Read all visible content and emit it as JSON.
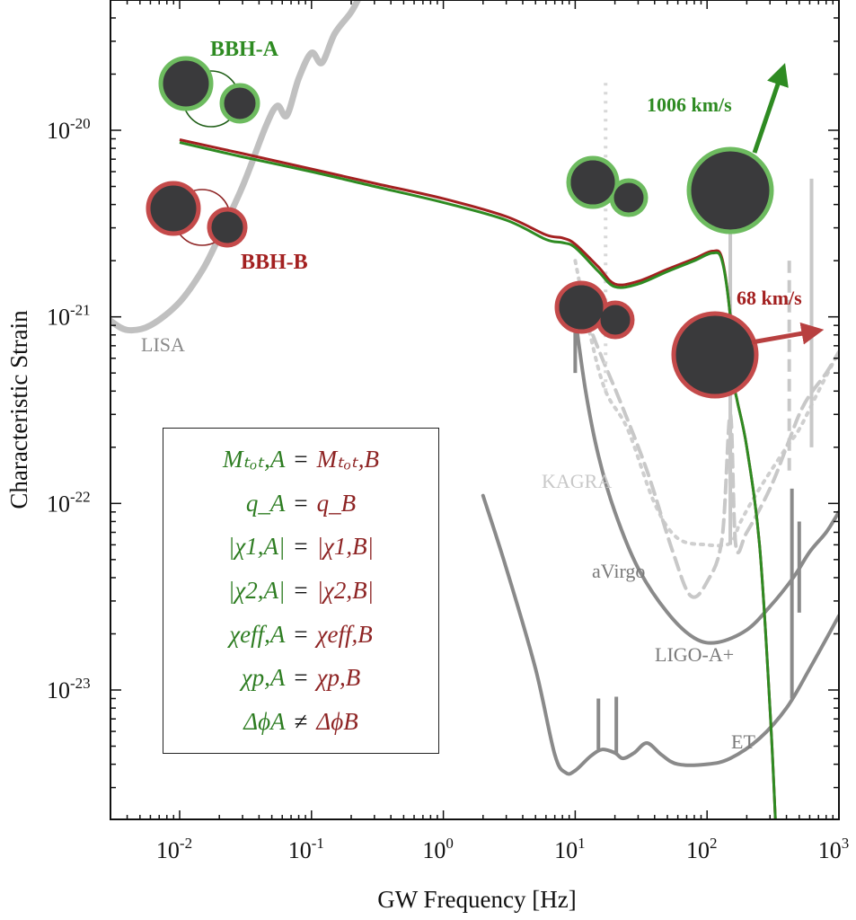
{
  "chart_data": {
    "type": "line",
    "title": "",
    "xlabel": "GW Frequency [Hz]",
    "ylabel": "Characteristic Strain",
    "xscale": "log",
    "yscale": "log",
    "xlim": [
      0.003,
      1000
    ],
    "ylim": [
      2e-24,
      5e-20
    ],
    "grid": false,
    "x_ticks": [
      {
        "value": 0.01,
        "base": "10",
        "exp": "-2"
      },
      {
        "value": 0.1,
        "base": "10",
        "exp": "-1"
      },
      {
        "value": 1,
        "base": "10",
        "exp": "0"
      },
      {
        "value": 10,
        "base": "10",
        "exp": "1"
      },
      {
        "value": 100,
        "base": "10",
        "exp": "2"
      },
      {
        "value": 1000,
        "base": "10",
        "exp": "3"
      }
    ],
    "y_ticks": [
      {
        "value": 1e-20,
        "base": "10",
        "exp": "-20"
      },
      {
        "value": 1e-21,
        "base": "10",
        "exp": "-21"
      },
      {
        "value": 1e-22,
        "base": "10",
        "exp": "-22"
      },
      {
        "value": 1e-23,
        "base": "10",
        "exp": "-23"
      }
    ],
    "series": [
      {
        "name": "BBH-A",
        "color": "#2e8b22",
        "x": [
          0.01,
          0.03,
          0.1,
          0.3,
          1,
          3,
          6,
          8,
          10,
          15,
          20,
          30,
          50,
          80,
          110,
          130,
          150,
          160,
          170,
          200,
          250,
          300,
          330
        ],
        "y": [
          8.6e-21,
          7.2e-21,
          6e-21,
          5e-21,
          4.1e-21,
          3.3e-21,
          2.6e-21,
          2.5e-21,
          2.35e-21,
          1.75e-21,
          1.45e-21,
          1.5e-21,
          1.75e-21,
          2e-21,
          2.2e-21,
          2e-21,
          1e-21,
          4.5e-22,
          3.5e-22,
          2e-22,
          6e-23,
          8e-24,
          2e-24
        ]
      },
      {
        "name": "BBH-B",
        "color": "#a32020",
        "x": [
          0.01,
          0.03,
          0.1,
          0.3,
          1,
          3,
          6,
          8,
          10,
          15,
          20,
          30,
          50,
          80,
          110,
          130,
          150,
          160,
          170,
          200,
          250,
          300,
          330
        ],
        "y": [
          8.9e-21,
          7.5e-21,
          6.2e-21,
          5.2e-21,
          4.3e-21,
          3.45e-21,
          2.75e-21,
          2.65e-21,
          2.45e-21,
          1.85e-21,
          1.5e-21,
          1.55e-21,
          1.8e-21,
          2.05e-21,
          2.25e-21,
          2.05e-21,
          1e-21,
          4.5e-22,
          3.5e-22,
          2e-22,
          6e-23,
          8e-24,
          2e-24
        ]
      }
    ],
    "detectors": [
      {
        "name": "LISA",
        "label": "LISA",
        "color": "#c0c0c0",
        "style": "solid",
        "x": [
          0.003,
          0.004,
          0.006,
          0.01,
          0.015,
          0.02,
          0.03,
          0.045,
          0.055,
          0.065,
          0.08,
          0.1,
          0.12,
          0.15,
          0.2,
          0.24
        ],
        "y": [
          9.5e-22,
          8.5e-22,
          9e-22,
          1.2e-21,
          1.8e-21,
          2.7e-21,
          5e-21,
          1.05e-20,
          1.35e-20,
          1.2e-20,
          1.9e-20,
          2.6e-20,
          2.3e-20,
          3.3e-20,
          4.3e-20,
          5.5e-20
        ]
      },
      {
        "name": "KAGRA",
        "label": "KAGRA",
        "color": "#cfcfcf",
        "style": "dotted",
        "x": [
          10,
          13,
          17,
          25,
          40,
          60,
          100,
          140,
          160,
          180,
          250,
          400,
          500,
          700,
          1000
        ],
        "y": [
          2e-21,
          8e-22,
          4e-22,
          2.5e-22,
          1e-22,
          6.5e-23,
          6e-23,
          6e-23,
          6.5e-23,
          8e-23,
          1.2e-22,
          2e-22,
          2.5e-22,
          4e-22,
          6.5e-22
        ]
      },
      {
        "name": "aVirgo",
        "label": "aVirgo",
        "color": "#c8c8c8",
        "style": "dashed",
        "x": [
          12,
          16,
          22,
          35,
          55,
          75,
          100,
          130,
          150,
          165,
          200,
          300,
          400,
          500,
          600,
          800,
          1000
        ],
        "y": [
          1e-21,
          6e-22,
          3.5e-22,
          1.5e-22,
          5.5e-23,
          3.2e-23,
          3.8e-23,
          6.5e-23,
          3e-22,
          6e-23,
          7e-23,
          1.2e-22,
          2e-22,
          3e-22,
          3.8e-22,
          5e-22,
          6.5e-22
        ]
      },
      {
        "name": "LIGO-A+",
        "label": "LIGO-A+",
        "color": "#8a8a8a",
        "style": "solid",
        "x": [
          10,
          12,
          15,
          20,
          30,
          50,
          80,
          120,
          200,
          300,
          450,
          600,
          800,
          1000
        ],
        "y": [
          1e-21,
          4e-22,
          1.8e-22,
          9e-23,
          4.5e-23,
          2.6e-23,
          1.9e-23,
          1.8e-23,
          2.1e-23,
          2.8e-23,
          4e-23,
          5.5e-23,
          7e-23,
          9e-23
        ]
      },
      {
        "name": "ET",
        "label": "ET",
        "color": "#8a8a8a",
        "style": "solid",
        "x": [
          2,
          3,
          5,
          7,
          8.5,
          10,
          13,
          16,
          20,
          23,
          28,
          35,
          45,
          60,
          100,
          150,
          250,
          400,
          600,
          1000
        ],
        "y": [
          1.1e-22,
          4.5e-23,
          1.3e-23,
          4.5e-24,
          3.6e-24,
          3.7e-24,
          4.4e-24,
          4.8e-24,
          4.6e-24,
          4.3e-24,
          4.6e-24,
          5.2e-24,
          4.5e-24,
          4e-24,
          4e-24,
          4.3e-24,
          5.5e-24,
          8e-24,
          1.3e-23,
          2.5e-23
        ]
      }
    ],
    "detector_lines": [
      {
        "detector": "ET",
        "x": 15,
        "y_from": 4.8e-24,
        "y_to": 9e-24,
        "color": "#8a8a8a"
      },
      {
        "detector": "ET",
        "x": 20.5,
        "y_from": 4.5e-24,
        "y_to": 9.2e-24,
        "color": "#8a8a8a"
      },
      {
        "detector": "ET",
        "x": 440,
        "y_from": 9e-24,
        "y_to": 1.2e-22,
        "color": "#8a8a8a"
      },
      {
        "detector": "ET",
        "x": 500,
        "y_from": 2.6e-23,
        "y_to": 8e-23,
        "color": "#8a8a8a"
      },
      {
        "detector": "LIGO-A+",
        "x": 10,
        "y_from": 5e-22,
        "y_to": 1e-21,
        "color": "#8a8a8a"
      },
      {
        "detector": "KAGRA",
        "x": 17,
        "y_from": 4e-22,
        "y_to": 1.8e-20,
        "color": "#d8d8d8",
        "style": "dotted"
      },
      {
        "detector": "aVirgo",
        "x": 150,
        "y_from": 6e-23,
        "y_to": 3.8e-21,
        "color": "#c8c8c8"
      },
      {
        "detector": "aVirgo",
        "x": 420,
        "y_from": 1.5e-22,
        "y_to": 2e-21,
        "color": "#c8c8c8",
        "style": "dashed"
      },
      {
        "detector": "LIGO-A+",
        "x": 620,
        "y_from": 2e-22,
        "y_to": 5.5e-21,
        "color": "#c8c8c8"
      }
    ],
    "annotations": [
      {
        "text": "BBH-A",
        "color": "#2e8b22"
      },
      {
        "text": "BBH-B",
        "color": "#a32020"
      },
      {
        "text": "1006 km/s",
        "color": "#2e8b22"
      },
      {
        "text": "68 km/s",
        "color": "#a32020"
      }
    ],
    "equations": [
      {
        "lhs": "Mₜₒₜ,A",
        "op": "=",
        "rhs": "Mₜₒₜ,B",
        "lhs_tex": "M_{tot,A}",
        "rhs_tex": "M_{tot,B}"
      },
      {
        "lhs": "q_A",
        "op": "=",
        "rhs": "q_B",
        "lhs_tex": "q_A",
        "rhs_tex": "q_B"
      },
      {
        "lhs": "|χ1,A|",
        "op": "=",
        "rhs": "|χ1,B|",
        "lhs_tex": "|\\chi_{1,A}|",
        "rhs_tex": "|\\chi_{1,B}|"
      },
      {
        "lhs": "|χ2,A|",
        "op": "=",
        "rhs": "|χ2,B|",
        "lhs_tex": "|\\chi_{2,A}|",
        "rhs_tex": "|\\chi_{2,B}|"
      },
      {
        "lhs": "χeff,A",
        "op": "=",
        "rhs": "χeff,B",
        "lhs_tex": "\\chi_{eff,A}",
        "rhs_tex": "\\chi_{eff,B}"
      },
      {
        "lhs": "χp,A",
        "op": "=",
        "rhs": "χp,B",
        "lhs_tex": "\\chi_{p,A}",
        "rhs_tex": "\\chi_{p,B}"
      },
      {
        "lhs": "ΔϕA",
        "op": "≠",
        "rhs": "ΔϕB",
        "lhs_tex": "\\Delta\\phi_A",
        "rhs_tex": "\\Delta\\phi_B"
      }
    ]
  },
  "colors": {
    "bbh_a": "#2e8b22",
    "bbh_a_ring": "#6dbb5f",
    "bbh_b": "#a32020",
    "bbh_b_ring": "#c44a4a",
    "black_hole": "#3a3a3c",
    "axis": "#111111"
  }
}
